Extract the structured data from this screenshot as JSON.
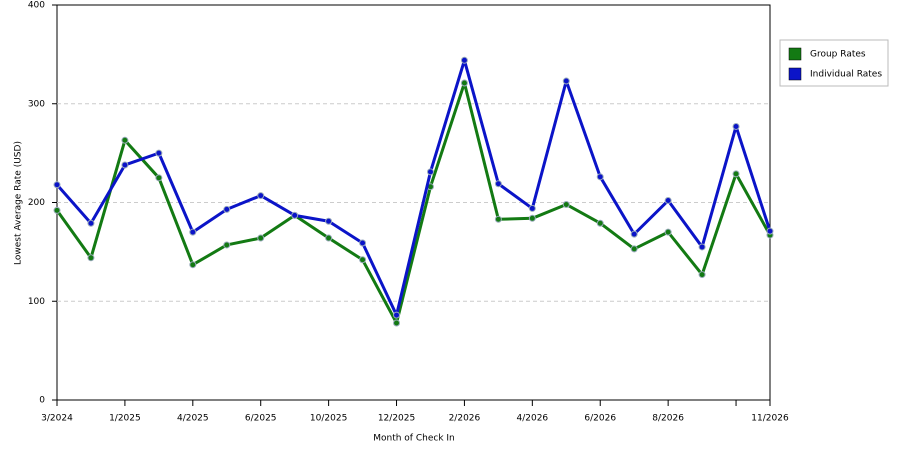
{
  "chart_data": {
    "type": "line",
    "x_label": "Month of Check In",
    "y_label": "Lowest Average Rate (USD)",
    "categories": [
      "3/2024",
      null,
      "1/2025",
      null,
      "4/2025",
      null,
      "6/2025",
      null,
      "10/2025",
      null,
      "12/2025",
      null,
      "2/2026",
      null,
      "4/2026",
      null,
      "6/2026",
      null,
      "8/2026",
      null,
      null,
      "11/2026"
    ],
    "series": [
      {
        "name": "Group Rates",
        "color": "#137a13",
        "values": [
          192,
          144,
          263,
          225,
          137,
          157,
          164,
          187,
          164,
          142,
          78,
          216,
          321,
          183,
          184,
          198,
          179,
          153,
          170,
          127,
          229,
          167
        ]
      },
      {
        "name": "Individual Rates",
        "color": "#0b14c8",
        "values": [
          218,
          179,
          238,
          250,
          170,
          193,
          207,
          187,
          181,
          159,
          86,
          231,
          344,
          219,
          194,
          323,
          226,
          168,
          202,
          155,
          277,
          171
        ]
      }
    ],
    "ylim": [
      0,
      400
    ],
    "yticks": [
      0,
      100,
      200,
      300,
      400
    ],
    "grid": true,
    "legend": "right"
  }
}
